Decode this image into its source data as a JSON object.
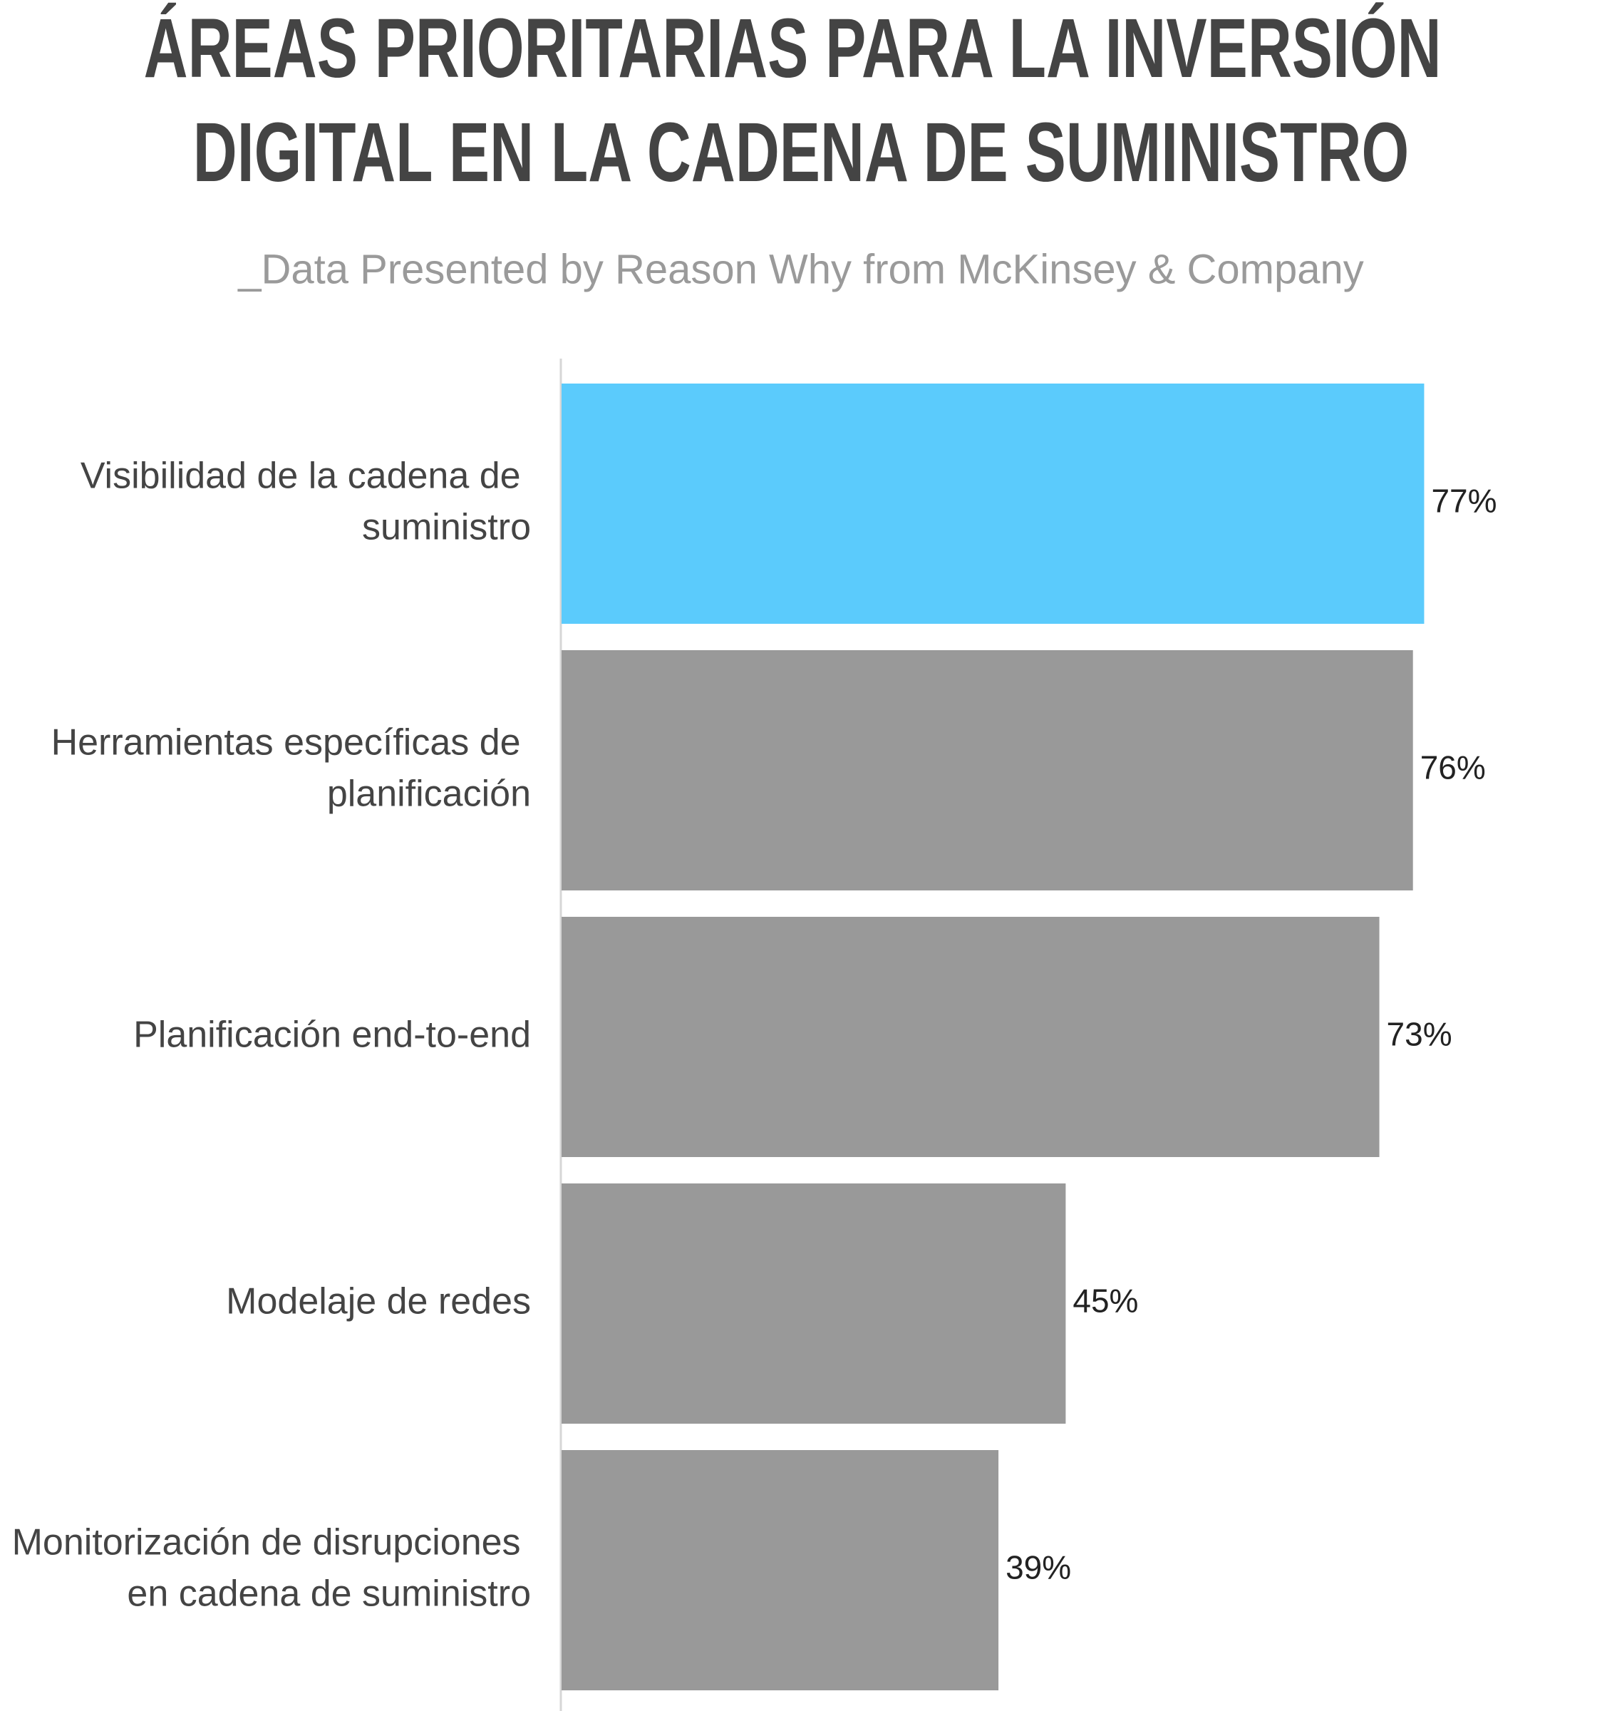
{
  "chart_data": {
    "type": "bar",
    "orientation": "horizontal",
    "title": "ÁREAS PRIORITARIAS PARA LA INVERSIÓN DIGITAL EN LA CADENA DE SUMINISTRO",
    "subtitle": "_Data Presented by Reason Why from McKinsey & Company",
    "categories": [
      "Visibilidad de la cadena de suministro",
      "Herramientas específicas de planificación",
      "Planificación end-to-end",
      "Modelaje de redes",
      "Monitorización de disrupciones en cadena de suministro"
    ],
    "values": [
      77,
      76,
      73,
      45,
      39
    ],
    "value_labels": [
      "77%",
      "76%",
      "73%",
      "45%",
      "39%"
    ],
    "colors": [
      "#5bcbfc",
      "#999999",
      "#999999",
      "#999999",
      "#999999"
    ]
  }
}
